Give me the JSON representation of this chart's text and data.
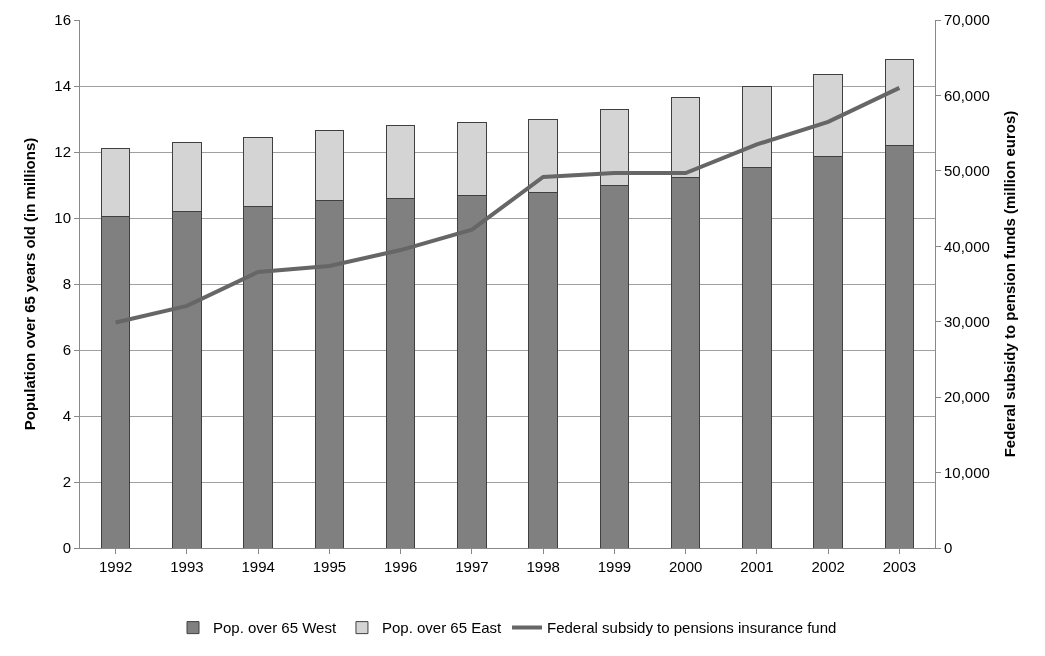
{
  "chart_data": {
    "type": "bar",
    "stacked": true,
    "categories": [
      "1992",
      "1993",
      "1994",
      "1995",
      "1996",
      "1997",
      "1998",
      "1999",
      "2000",
      "2001",
      "2002",
      "2003"
    ],
    "series": [
      {
        "name": "Pop. over 65 West",
        "color": "#808080",
        "values": [
          10.04,
          10.2,
          10.34,
          10.53,
          10.58,
          10.68,
          10.78,
          10.99,
          11.24,
          11.52,
          11.85,
          12.2
        ]
      },
      {
        "name": "Pop. over 65 East",
        "color": "#d4d4d4",
        "values": [
          2.06,
          2.1,
          2.11,
          2.12,
          2.22,
          2.22,
          2.22,
          2.31,
          2.41,
          2.48,
          2.5,
          2.6
        ]
      },
      {
        "name": "Federal subsidy to pensions insurance fund",
        "type": "line",
        "axis": "y2",
        "color": "#666666",
        "values": [
          29900,
          32100,
          36600,
          37400,
          39500,
          42200,
          49200,
          49700,
          49700,
          53500,
          56500,
          61000
        ]
      }
    ],
    "ylabel": "Population over 65 years old (in millions)",
    "y2label": "Federal subsidy to pension funds (million euros)",
    "ylim": [
      0,
      16
    ],
    "yticks": [
      0,
      2,
      4,
      6,
      8,
      10,
      12,
      14,
      16
    ],
    "y2lim": [
      0,
      70000
    ],
    "y2ticks": [
      {
        "value": 0,
        "label": "0"
      },
      {
        "value": 10000,
        "label": "10,000"
      },
      {
        "value": 20000,
        "label": "20,000"
      },
      {
        "value": 30000,
        "label": "30,000"
      },
      {
        "value": 40000,
        "label": "40,000"
      },
      {
        "value": 50000,
        "label": "50,000"
      },
      {
        "value": 60000,
        "label": "60,000"
      },
      {
        "value": 70000,
        "label": "70,000"
      }
    ],
    "grid": "y",
    "legend": "bottom",
    "marker": "none",
    "line_style": "solid"
  }
}
